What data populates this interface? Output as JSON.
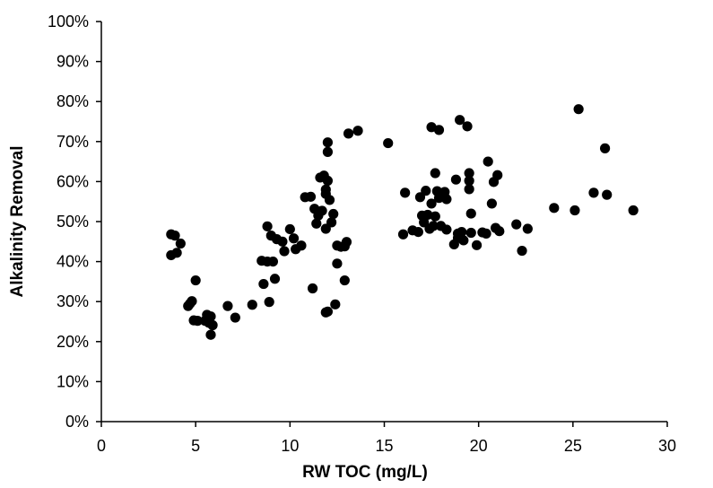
{
  "chart_data": {
    "type": "scatter",
    "title": "",
    "xlabel": "RW TOC (mg/L)",
    "ylabel": "Alkalinity Removal",
    "xlim": [
      0,
      30
    ],
    "ylim": [
      0,
      100
    ],
    "x_ticks": [
      "0",
      "5",
      "10",
      "15",
      "20",
      "25",
      "30"
    ],
    "y_ticks": [
      "0%",
      "10%",
      "20%",
      "30%",
      "40%",
      "50%",
      "60%",
      "70%",
      "80%",
      "90%",
      "100%"
    ],
    "grid": false,
    "legend": "none",
    "marker_color": "#000000",
    "points": [
      [
        3.7,
        46.8
      ],
      [
        3.9,
        46.5
      ],
      [
        4.2,
        44.5
      ],
      [
        3.7,
        41.6
      ],
      [
        4.0,
        42.2
      ],
      [
        5.0,
        35.3
      ],
      [
        4.8,
        30.1
      ],
      [
        4.7,
        29.5
      ],
      [
        4.6,
        28.9
      ],
      [
        4.9,
        25.3
      ],
      [
        5.1,
        25.2
      ],
      [
        5.5,
        25.2
      ],
      [
        5.6,
        26.7
      ],
      [
        5.8,
        26.3
      ],
      [
        5.9,
        24.1
      ],
      [
        5.7,
        24.7
      ],
      [
        5.8,
        21.7
      ],
      [
        6.7,
        28.9
      ],
      [
        7.1,
        26.0
      ],
      [
        8.0,
        29.2
      ],
      [
        8.5,
        40.2
      ],
      [
        8.8,
        40.0
      ],
      [
        9.1,
        40.0
      ],
      [
        8.6,
        34.4
      ],
      [
        9.2,
        35.7
      ],
      [
        8.9,
        29.9
      ],
      [
        8.8,
        48.8
      ],
      [
        9.0,
        46.5
      ],
      [
        9.3,
        45.6
      ],
      [
        9.6,
        45.0
      ],
      [
        9.7,
        42.6
      ],
      [
        10.0,
        48.1
      ],
      [
        10.2,
        45.8
      ],
      [
        10.3,
        43.1
      ],
      [
        10.6,
        44.0
      ],
      [
        10.8,
        56.1
      ],
      [
        11.1,
        56.2
      ],
      [
        11.3,
        53.2
      ],
      [
        11.4,
        49.5
      ],
      [
        11.5,
        51.5
      ],
      [
        11.6,
        61.0
      ],
      [
        11.8,
        61.5
      ],
      [
        11.9,
        58.0
      ],
      [
        12.0,
        60.2
      ],
      [
        11.9,
        56.9
      ],
      [
        12.1,
        55.4
      ],
      [
        11.7,
        52.7
      ],
      [
        11.9,
        48.2
      ],
      [
        12.0,
        69.8
      ],
      [
        12.0,
        67.4
      ],
      [
        12.3,
        51.9
      ],
      [
        12.2,
        49.8
      ],
      [
        12.5,
        44.0
      ],
      [
        12.7,
        43.7
      ],
      [
        12.9,
        43.8
      ],
      [
        13.0,
        44.9
      ],
      [
        12.5,
        39.5
      ],
      [
        12.9,
        35.3
      ],
      [
        11.2,
        33.3
      ],
      [
        12.0,
        27.5
      ],
      [
        11.9,
        27.3
      ],
      [
        12.4,
        29.3
      ],
      [
        13.1,
        72.0
      ],
      [
        13.6,
        72.7
      ],
      [
        15.2,
        69.6
      ],
      [
        16.0,
        46.8
      ],
      [
        16.1,
        57.2
      ],
      [
        16.5,
        47.8
      ],
      [
        16.8,
        47.4
      ],
      [
        16.9,
        56.1
      ],
      [
        17.0,
        51.5
      ],
      [
        17.1,
        49.8
      ],
      [
        17.2,
        57.7
      ],
      [
        17.3,
        51.7
      ],
      [
        17.4,
        48.2
      ],
      [
        17.5,
        54.5
      ],
      [
        17.5,
        73.6
      ],
      [
        17.6,
        48.9
      ],
      [
        17.7,
        62.1
      ],
      [
        17.7,
        51.3
      ],
      [
        17.8,
        57.6
      ],
      [
        17.9,
        55.9
      ],
      [
        17.9,
        72.9
      ],
      [
        18.0,
        48.9
      ],
      [
        18.2,
        57.4
      ],
      [
        18.3,
        48.0
      ],
      [
        18.3,
        55.6
      ],
      [
        18.7,
        44.3
      ],
      [
        18.8,
        60.5
      ],
      [
        18.9,
        47.0
      ],
      [
        18.9,
        45.9
      ],
      [
        19.0,
        75.4
      ],
      [
        19.1,
        47.4
      ],
      [
        19.2,
        45.3
      ],
      [
        19.4,
        73.8
      ],
      [
        19.5,
        62.1
      ],
      [
        19.5,
        60.2
      ],
      [
        19.5,
        58.1
      ],
      [
        19.6,
        52.0
      ],
      [
        19.6,
        47.2
      ],
      [
        19.9,
        44.1
      ],
      [
        20.2,
        47.3
      ],
      [
        20.4,
        47.0
      ],
      [
        20.5,
        65.0
      ],
      [
        20.7,
        54.5
      ],
      [
        20.8,
        59.9
      ],
      [
        20.9,
        48.4
      ],
      [
        21.0,
        61.6
      ],
      [
        21.1,
        47.6
      ],
      [
        22.0,
        49.3
      ],
      [
        22.3,
        42.7
      ],
      [
        22.6,
        48.2
      ],
      [
        24.0,
        53.4
      ],
      [
        25.1,
        52.8
      ],
      [
        25.3,
        78.1
      ],
      [
        26.1,
        57.2
      ],
      [
        26.7,
        68.3
      ],
      [
        26.8,
        56.7
      ],
      [
        28.2,
        52.8
      ]
    ]
  }
}
